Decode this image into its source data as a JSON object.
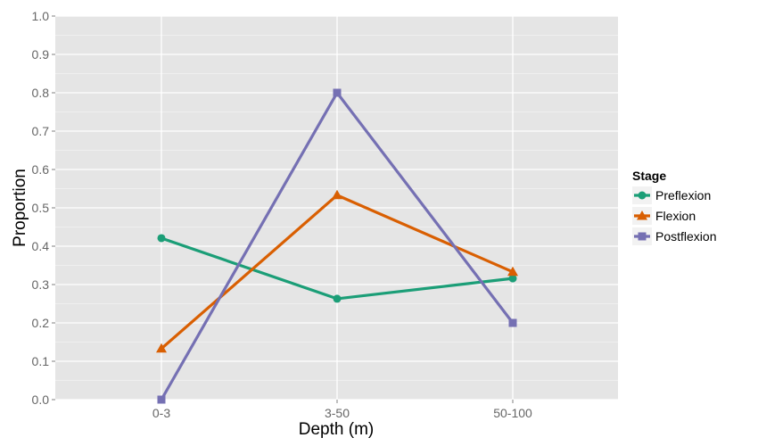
{
  "chart_data": {
    "type": "line",
    "xlabel": "Depth (m)",
    "ylabel": "Proportion",
    "categories": [
      "0-3",
      "3-50",
      "50-100"
    ],
    "ylim": [
      0,
      1
    ],
    "yticks": [
      "0.0",
      "0.1",
      "0.2",
      "0.3",
      "0.4",
      "0.5",
      "0.6",
      "0.7",
      "0.8",
      "0.9",
      "1.0"
    ],
    "grid": true,
    "legend": {
      "title": "Stage",
      "position": "right"
    },
    "series": [
      {
        "name": "Preflexion",
        "marker": "circle",
        "color": "#1b9e77",
        "values": [
          0.421,
          0.263,
          0.316
        ]
      },
      {
        "name": "Flexion",
        "marker": "triangle",
        "color": "#d95f02",
        "values": [
          0.133,
          0.533,
          0.333
        ]
      },
      {
        "name": "Postflexion",
        "marker": "square",
        "color": "#7570b3",
        "values": [
          0.0,
          0.8,
          0.2
        ]
      }
    ]
  }
}
